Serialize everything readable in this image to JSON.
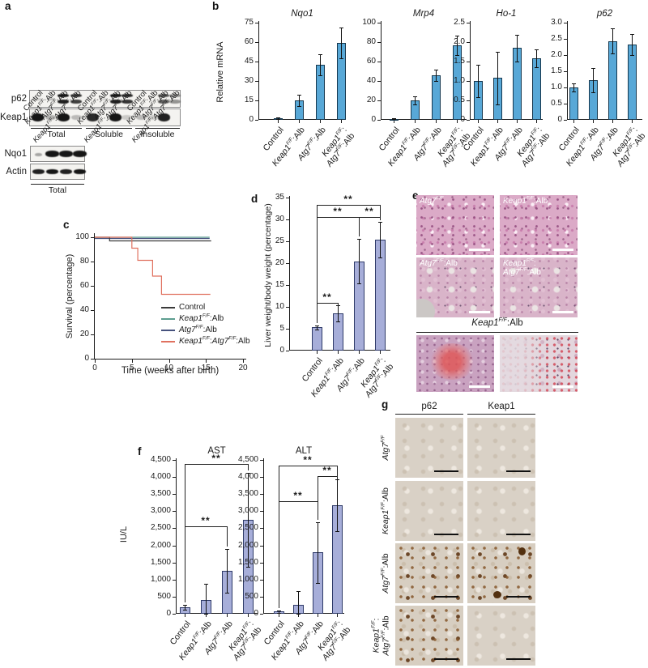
{
  "panels": {
    "a": {
      "letter": "a",
      "lane_labels": [
        "Control",
        "*Keap1*^{F/F}:Alb",
        "*Atg7*^{F/F}:Alb",
        "*Keap1*^{F/F}:*Atg7*^{F/F}:Alb"
      ],
      "blot_rows": [
        {
          "label": "p62",
          "double": true,
          "groups": [
            [
              0.08,
              0.12,
              1,
              0.85
            ],
            [
              0,
              0.06,
              1,
              0.9
            ],
            [
              0,
              0,
              0.7,
              0.45
            ]
          ]
        },
        {
          "label": "Keap1",
          "double": false,
          "groups": [
            [
              1,
              0.3,
              1,
              0.25
            ],
            [
              0.9,
              0,
              1,
              0.18
            ],
            [
              0.25,
              0.18,
              0.95,
              0
            ]
          ]
        }
      ],
      "blot_rows_total": [
        {
          "label": "Nqo1",
          "groups": [
            [
              0.35,
              1,
              1,
              1
            ]
          ]
        },
        {
          "label": "Actin",
          "groups": [
            [
              0.95,
              1,
              0.95,
              1
            ]
          ]
        }
      ],
      "group_labels": [
        "Total",
        "Soluble",
        "Insoluble"
      ],
      "bottom_group_label": "Total"
    },
    "b": {
      "letter": "b"
    },
    "c": {
      "letter": "c"
    },
    "d": {
      "letter": "d"
    },
    "e": {
      "letter": "e",
      "images": [
        {
          "label": "*Atg7*^{F/F}"
        },
        {
          "label": "*Keap1*^{F/F}:Alb"
        },
        {
          "label": "*Atg7*^{F/F}:Alb"
        },
        {
          "label": "*Keap1*^{F/F}:\n*Atg7*^{F/F}:Alb"
        }
      ],
      "header": "*Keap1*^{F/F}:Alb"
    },
    "f": {
      "letter": "f"
    },
    "g": {
      "letter": "g",
      "columns": [
        "p62",
        "Keap1"
      ],
      "rows": [
        "*Atg7*^{F/F}",
        "*Keap1*^{F/F}:Alb",
        "*Atg7*^{F/F}:Alb",
        "*Keap1*^{F/F}:\n*Atg7*^{F/F}:Alb"
      ]
    }
  },
  "chart_data": [
    {
      "id": "b-nqo1",
      "type": "bar",
      "title": "Nqo1",
      "ylabel": "Relative mRNA",
      "ylim": [
        0,
        75
      ],
      "ytick_vals": [
        0,
        15,
        30,
        45,
        60,
        75
      ],
      "ytick_labels": [
        "0",
        "15",
        "30",
        "45",
        "60",
        "75"
      ],
      "categories": [
        "Control",
        "*Keap1*^{F/F}:Alb",
        "*Atg7*^{F/F}:Alb",
        "*Keap1*^{F/F}:\n*Atg7*^{F/F}:Alb"
      ],
      "values": [
        1.5,
        15,
        42.5,
        59.5
      ],
      "errors": [
        0.6,
        4.5,
        8,
        12
      ],
      "bar_color": "#58a8d7",
      "bar_border": "#16384f",
      "grid": false
    },
    {
      "id": "b-mrp4",
      "type": "bar",
      "title": "Mrp4",
      "ylim": [
        0,
        100
      ],
      "ytick_vals": [
        0,
        20,
        40,
        60,
        80,
        100
      ],
      "ytick_labels": [
        "0",
        "20",
        "40",
        "60",
        "80",
        "100"
      ],
      "categories": [
        "Control",
        "*Keap1*^{F/F}:Alb",
        "*Atg7*^{F/F}:Alb",
        "*Keap1*^{F/F}:\n*Atg7*^{F/F}:Alb"
      ],
      "values": [
        1,
        20,
        46,
        77
      ],
      "errors": [
        0.4,
        4,
        6,
        10
      ],
      "bar_color": "#58a8d7",
      "bar_border": "#16384f",
      "grid": false
    },
    {
      "id": "b-ho1",
      "type": "bar",
      "title": "Ho-1",
      "ylim": [
        0,
        2.5
      ],
      "ytick_vals": [
        0,
        0.5,
        1,
        1.5,
        2,
        2.5
      ],
      "ytick_labels": [
        "0",
        "0.5",
        "1.0",
        "1.5",
        "2.0",
        "2.5"
      ],
      "categories": [
        "Control",
        "*Keap1*^{F/F}:Alb",
        "*Atg7*^{F/F}:Alb",
        "*Keap1*^{F/F}:\n*Atg7*^{F/F}:Alb"
      ],
      "values": [
        1.0,
        1.08,
        1.85,
        1.58
      ],
      "errors": [
        0.42,
        0.68,
        0.34,
        0.23
      ],
      "bar_color": "#58a8d7",
      "bar_border": "#16384f",
      "grid": false
    },
    {
      "id": "b-p62",
      "type": "bar",
      "title": "p62",
      "ylim": [
        0,
        3
      ],
      "ytick_vals": [
        0,
        0.5,
        1,
        1.5,
        2,
        2.5,
        3
      ],
      "ytick_labels": [
        "0",
        "0.5",
        "1.0",
        "1.5",
        "2.0",
        "2.5",
        "3.0"
      ],
      "categories": [
        "Control",
        "*Keap1*^{F/F}:Alb",
        "*Atg7*^{F/F}:Alb",
        "*Keap1*^{F/F}:\n*Atg7*^{F/F}:Alb"
      ],
      "values": [
        1.0,
        1.22,
        2.43,
        2.32
      ],
      "errors": [
        0.13,
        0.38,
        0.39,
        0.33
      ],
      "bar_color": "#58a8d7",
      "bar_border": "#16384f",
      "grid": false
    },
    {
      "id": "c-survival",
      "type": "line",
      "xlabel": "Time (weeks after birth)",
      "ylabel": "Survival (percentage)",
      "xlim": [
        0,
        20
      ],
      "ylim": [
        0,
        100
      ],
      "xtick_vals": [
        0,
        5,
        10,
        15,
        20
      ],
      "ytick_vals": [
        0,
        20,
        40,
        60,
        80,
        100
      ],
      "legend_position": "inside-bottom-right",
      "grid": false,
      "series": [
        {
          "name": "Control",
          "color": "#3a3a3a",
          "steps": [
            [
              0,
              100
            ],
            [
              2,
              100
            ],
            [
              2,
              97
            ],
            [
              15.7,
              97
            ]
          ]
        },
        {
          "name": "*Keap1*^{F/F}:Alb",
          "color": "#5d9e90",
          "steps": [
            [
              0,
              100
            ],
            [
              15.5,
              100
            ]
          ]
        },
        {
          "name": "*Atg7*^{F/F}:Alb",
          "color": "#46527d",
          "steps": [
            [
              0,
              100
            ],
            [
              15.5,
              100
            ]
          ]
        },
        {
          "name": "*Keap1*^{F/F}:*Atg7*^{F/F}:Alb",
          "color": "#e0715f",
          "steps": [
            [
              0,
              100
            ],
            [
              5,
              100
            ],
            [
              5,
              91
            ],
            [
              5.8,
              91
            ],
            [
              5.8,
              81
            ],
            [
              7.8,
              81
            ],
            [
              7.8,
              68
            ],
            [
              9,
              68
            ],
            [
              9,
              53
            ],
            [
              15.6,
              53
            ]
          ]
        }
      ]
    },
    {
      "id": "d-liver",
      "type": "bar",
      "ylabel": "Liver weight/body weight (percentage)",
      "ylim": [
        0,
        35
      ],
      "ytick_vals": [
        0,
        5,
        10,
        15,
        20,
        25,
        30,
        35
      ],
      "ytick_labels": [
        "0",
        "5",
        "10",
        "15",
        "20",
        "25",
        "30",
        "35"
      ],
      "categories": [
        "Control",
        "*Keap1*^{F/F}:Alb",
        "*Atg7*^{F/F}:Alb",
        "*Keap1*^{F/F}:\n*Atg7*^{F/F}:Alb"
      ],
      "values": [
        5.3,
        8.5,
        20.4,
        25.4
      ],
      "errors": [
        0.5,
        1.9,
        5.1,
        4.1
      ],
      "bar_color": "#a7aed9",
      "bar_border": "#2e3a68",
      "grid": false,
      "sig": [
        {
          "from": 0,
          "to": 1,
          "y": 11,
          "label": "**"
        },
        {
          "from": 0,
          "to": 2,
          "y": 30.6,
          "label": "**"
        },
        {
          "from": 2,
          "to": 3,
          "y": 30.6,
          "label": "**"
        },
        {
          "from": 0,
          "to": 3,
          "y": 33.4,
          "label": "**"
        }
      ]
    },
    {
      "id": "f-ast",
      "type": "bar",
      "title": "AST",
      "ylabel": "IU/L",
      "ylim": [
        0,
        4500
      ],
      "ytick_vals": [
        0,
        500,
        1000,
        1500,
        2000,
        2500,
        3000,
        3500,
        4000,
        4500
      ],
      "ytick_labels": [
        "0",
        "500",
        "1,000",
        "1,500",
        "2,000",
        "2,500",
        "3,000",
        "3,500",
        "4,000",
        "4,500"
      ],
      "categories": [
        "Control",
        "*Keap1*^{F/F}:Alb",
        "*Atg7*^{F/F}:Alb",
        "*Keap1*^{F/F}:\n*Atg7*^{F/F}:Alb"
      ],
      "values": [
        190,
        400,
        1250,
        2750
      ],
      "errors": [
        70,
        480,
        640,
        1380
      ],
      "bar_color": "#a7aed9",
      "bar_border": "#2e3a68",
      "grid": false,
      "sig": [
        {
          "from": 0,
          "to": 2,
          "y": 2560,
          "label": "**"
        },
        {
          "from": 0,
          "to": 3,
          "y": 4390,
          "label": "**"
        }
      ]
    },
    {
      "id": "f-alt",
      "type": "bar",
      "title": "ALT",
      "ylim": [
        0,
        4500
      ],
      "ytick_vals": [
        0,
        500,
        1000,
        1500,
        2000,
        2500,
        3000,
        3500,
        4000,
        4500
      ],
      "ytick_labels": [
        "0",
        "500",
        "1,000",
        "1,500",
        "2,000",
        "2,500",
        "3,000",
        "3,500",
        "4,000",
        "4,500"
      ],
      "categories": [
        "Control",
        "*Keap1*^{F/F}:Alb",
        "*Atg7*^{F/F}:Alb",
        "*Keap1*^{F/F}:\n*Atg7*^{F/F}:Alb"
      ],
      "values": [
        60,
        270,
        1790,
        3170
      ],
      "errors": [
        30,
        390,
        890,
        750
      ],
      "bar_color": "#a7aed9",
      "bar_border": "#2e3a68",
      "grid": false,
      "sig": [
        {
          "from": 0,
          "to": 2,
          "y": 3290,
          "label": "**"
        },
        {
          "from": 2,
          "to": 3,
          "y": 4020,
          "label": "**"
        },
        {
          "from": 0,
          "to": 3,
          "y": 4340,
          "label": "**"
        }
      ]
    }
  ]
}
